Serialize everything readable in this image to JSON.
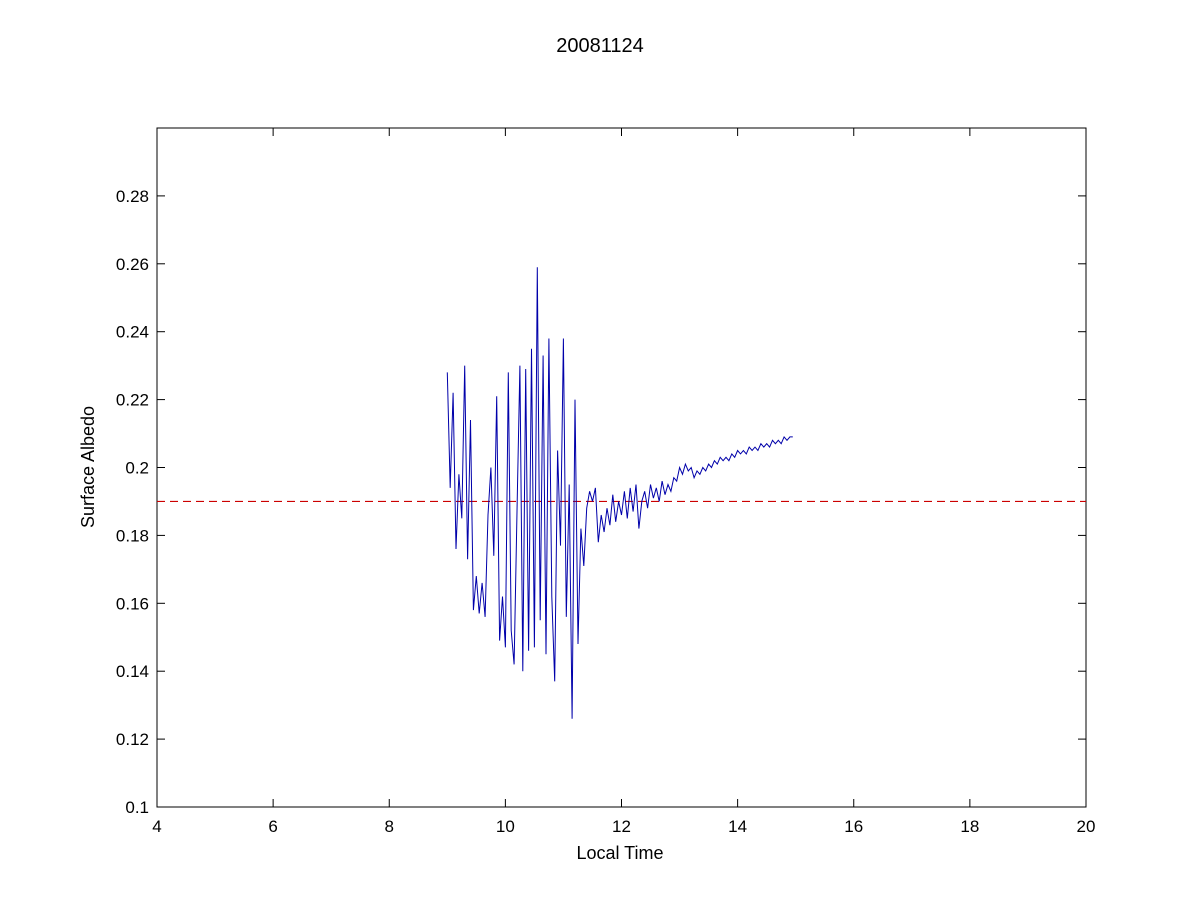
{
  "chart_data": {
    "type": "line",
    "title": "20081124",
    "xlabel": "Local Time",
    "ylabel": "Surface Albedo",
    "xlim": [
      4,
      20
    ],
    "ylim": [
      0.1,
      0.3
    ],
    "xticks": [
      4,
      6,
      8,
      10,
      12,
      14,
      16,
      18,
      20
    ],
    "yticks": [
      0.1,
      0.12,
      0.14,
      0.16,
      0.18,
      0.2,
      0.22,
      0.24,
      0.26,
      0.28
    ],
    "xtick_labels": [
      "4",
      "6",
      "8",
      "10",
      "12",
      "14",
      "16",
      "18",
      "20"
    ],
    "ytick_labels": [
      "0.1",
      "0.12",
      "0.14",
      "0.16",
      "0.18",
      "0.2",
      "0.22",
      "0.24",
      "0.26",
      "0.28"
    ],
    "grid": false,
    "reference_line": {
      "y": 0.19,
      "style": "dashed",
      "color": "#cc0000"
    },
    "series": [
      {
        "color": "#0000aa",
        "x": [
          9.0,
          9.05,
          9.1,
          9.15,
          9.2,
          9.25,
          9.3,
          9.35,
          9.4,
          9.45,
          9.5,
          9.55,
          9.6,
          9.65,
          9.7,
          9.75,
          9.8,
          9.85,
          9.9,
          9.95,
          10.0,
          10.05,
          10.1,
          10.15,
          10.2,
          10.25,
          10.3,
          10.35,
          10.4,
          10.45,
          10.5,
          10.55,
          10.6,
          10.65,
          10.7,
          10.75,
          10.8,
          10.85,
          10.9,
          10.95,
          11.0,
          11.05,
          11.1,
          11.15,
          11.2,
          11.25,
          11.3,
          11.35,
          11.4,
          11.45,
          11.5,
          11.55,
          11.6,
          11.65,
          11.7,
          11.75,
          11.8,
          11.85,
          11.9,
          11.95,
          12.0,
          12.05,
          12.1,
          12.15,
          12.2,
          12.25,
          12.3,
          12.35,
          12.4,
          12.45,
          12.5,
          12.55,
          12.6,
          12.65,
          12.7,
          12.75,
          12.8,
          12.85,
          12.9,
          12.95,
          13.0,
          13.05,
          13.1,
          13.15,
          13.2,
          13.25,
          13.3,
          13.35,
          13.4,
          13.45,
          13.5,
          13.55,
          13.6,
          13.65,
          13.7,
          13.75,
          13.8,
          13.85,
          13.9,
          13.95,
          14.0,
          14.05,
          14.1,
          14.15,
          14.2,
          14.25,
          14.3,
          14.35,
          14.4,
          14.45,
          14.5,
          14.55,
          14.6,
          14.65,
          14.7,
          14.75,
          14.8,
          14.85,
          14.9,
          14.95
        ],
        "y": [
          0.228,
          0.194,
          0.222,
          0.176,
          0.198,
          0.185,
          0.23,
          0.173,
          0.214,
          0.158,
          0.168,
          0.157,
          0.166,
          0.156,
          0.186,
          0.2,
          0.174,
          0.221,
          0.149,
          0.162,
          0.147,
          0.228,
          0.152,
          0.142,
          0.187,
          0.23,
          0.14,
          0.229,
          0.146,
          0.235,
          0.147,
          0.259,
          0.155,
          0.233,
          0.145,
          0.238,
          0.162,
          0.137,
          0.205,
          0.177,
          0.238,
          0.156,
          0.195,
          0.126,
          0.22,
          0.148,
          0.182,
          0.171,
          0.188,
          0.193,
          0.19,
          0.194,
          0.178,
          0.186,
          0.181,
          0.188,
          0.183,
          0.192,
          0.184,
          0.19,
          0.186,
          0.193,
          0.185,
          0.194,
          0.187,
          0.195,
          0.182,
          0.19,
          0.193,
          0.188,
          0.195,
          0.191,
          0.194,
          0.19,
          0.196,
          0.192,
          0.195,
          0.193,
          0.197,
          0.196,
          0.2,
          0.198,
          0.201,
          0.199,
          0.2,
          0.197,
          0.199,
          0.198,
          0.2,
          0.199,
          0.201,
          0.2,
          0.202,
          0.201,
          0.203,
          0.202,
          0.203,
          0.202,
          0.204,
          0.203,
          0.205,
          0.204,
          0.205,
          0.204,
          0.206,
          0.205,
          0.206,
          0.205,
          0.207,
          0.206,
          0.207,
          0.206,
          0.208,
          0.207,
          0.208,
          0.207,
          0.209,
          0.208,
          0.209,
          0.209
        ]
      }
    ]
  }
}
